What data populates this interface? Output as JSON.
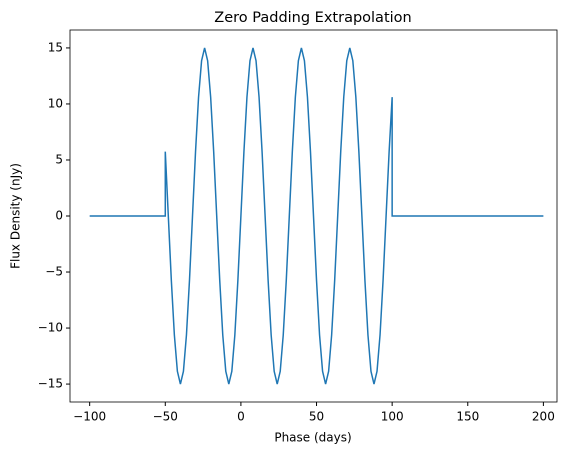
{
  "chart_data": {
    "type": "line",
    "title": "Zero Padding Extrapolation",
    "x_label": "Phase (days)",
    "y_label": "Flux Density (nJy)",
    "xlim": [
      -113,
      209
    ],
    "ylim": [
      -16.6,
      16.6
    ],
    "xticks": [
      {
        "value": -100,
        "label": "−100"
      },
      {
        "value": -50,
        "label": "−50"
      },
      0,
      50,
      100,
      150,
      200
    ],
    "yticks": [
      {
        "value": -15,
        "label": "−15"
      },
      {
        "value": -10,
        "label": "−10"
      },
      {
        "value": -5,
        "label": "−5"
      },
      0,
      5,
      10,
      15
    ],
    "series": [
      {
        "color": "#1f77b4",
        "x": [
          -100,
          -50,
          -50,
          -48,
          -46,
          -44,
          -42,
          -40,
          -38,
          -36,
          -34,
          -32,
          -30,
          -28,
          -26,
          -24,
          -22,
          -20,
          -18,
          -16,
          -14,
          -12,
          -10,
          -8,
          -6,
          -4,
          -2,
          0,
          2,
          4,
          6,
          8,
          10,
          12,
          14,
          16,
          18,
          20,
          22,
          24,
          26,
          28,
          30,
          32,
          34,
          36,
          38,
          40,
          42,
          44,
          46,
          48,
          50,
          52,
          54,
          56,
          58,
          60,
          62,
          64,
          66,
          68,
          70,
          72,
          74,
          76,
          78,
          80,
          82,
          84,
          86,
          88,
          90,
          92,
          94,
          96,
          98,
          100,
          100,
          200
        ],
        "values": [
          0,
          0,
          5.74,
          0,
          -5.74,
          -10.61,
          -13.86,
          -15,
          -13.86,
          -10.61,
          -5.74,
          0,
          5.74,
          10.61,
          13.86,
          15,
          13.86,
          10.61,
          5.74,
          0,
          -5.74,
          -10.61,
          -13.86,
          -15,
          -13.86,
          -10.61,
          -5.74,
          0,
          5.74,
          10.61,
          13.86,
          15,
          13.86,
          10.61,
          5.74,
          0,
          -5.74,
          -10.61,
          -13.86,
          -15,
          -13.86,
          -10.61,
          -5.74,
          0,
          5.74,
          10.61,
          13.86,
          15,
          13.86,
          10.61,
          5.74,
          0,
          -5.74,
          -10.61,
          -13.86,
          -15,
          -13.86,
          -10.61,
          -5.74,
          0,
          5.74,
          10.61,
          13.86,
          15,
          13.86,
          10.61,
          5.74,
          0,
          -5.74,
          -10.61,
          -13.86,
          -15,
          -13.86,
          -10.61,
          -5.74,
          0,
          5.74,
          10.61,
          0,
          0
        ]
      }
    ]
  }
}
